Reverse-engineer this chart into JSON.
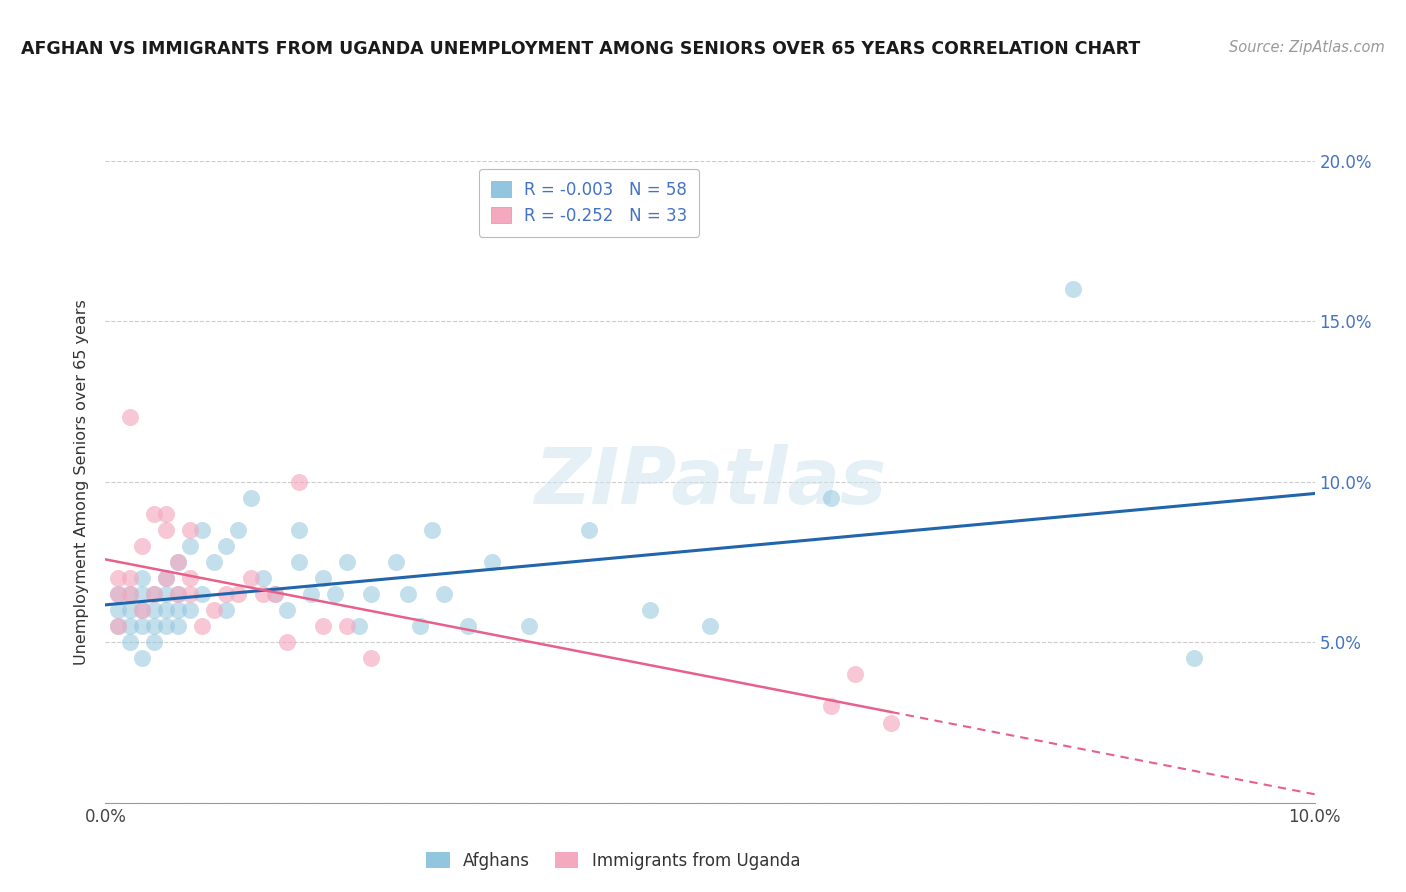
{
  "title": "AFGHAN VS IMMIGRANTS FROM UGANDA UNEMPLOYMENT AMONG SENIORS OVER 65 YEARS CORRELATION CHART",
  "source": "Source: ZipAtlas.com",
  "ylabel": "Unemployment Among Seniors over 65 years",
  "r_afghans": -0.003,
  "n_afghans": 58,
  "r_uganda": -0.252,
  "n_uganda": 33,
  "afghans_color": "#92c5de",
  "uganda_color": "#f4a9bf",
  "trend_afghans_color": "#2166ac",
  "trend_uganda_color": "#e8608a",
  "xlim": [
    0.0,
    0.1
  ],
  "ylim": [
    0.0,
    0.2
  ],
  "xticks": [
    0.0,
    0.02,
    0.04,
    0.06,
    0.08,
    0.1
  ],
  "xtick_labels": [
    "0.0%",
    "",
    "",
    "",
    "",
    "10.0%"
  ],
  "ytick_vals": [
    0.0,
    0.05,
    0.1,
    0.15,
    0.2
  ],
  "ytick_labels_right": [
    "",
    "5.0%",
    "10.0%",
    "15.0%",
    "20.0%"
  ],
  "afghans_x": [
    0.001,
    0.001,
    0.001,
    0.002,
    0.002,
    0.002,
    0.002,
    0.003,
    0.003,
    0.003,
    0.003,
    0.003,
    0.004,
    0.004,
    0.004,
    0.004,
    0.005,
    0.005,
    0.005,
    0.005,
    0.006,
    0.006,
    0.006,
    0.006,
    0.007,
    0.007,
    0.008,
    0.008,
    0.009,
    0.01,
    0.01,
    0.011,
    0.012,
    0.013,
    0.014,
    0.015,
    0.016,
    0.016,
    0.017,
    0.018,
    0.019,
    0.02,
    0.021,
    0.022,
    0.024,
    0.025,
    0.026,
    0.027,
    0.028,
    0.03,
    0.032,
    0.035,
    0.04,
    0.045,
    0.05,
    0.06,
    0.08,
    0.09
  ],
  "afghans_y": [
    0.055,
    0.06,
    0.065,
    0.05,
    0.055,
    0.06,
    0.065,
    0.045,
    0.055,
    0.06,
    0.065,
    0.07,
    0.05,
    0.055,
    0.06,
    0.065,
    0.055,
    0.06,
    0.065,
    0.07,
    0.055,
    0.06,
    0.065,
    0.075,
    0.06,
    0.08,
    0.065,
    0.085,
    0.075,
    0.06,
    0.08,
    0.085,
    0.095,
    0.07,
    0.065,
    0.06,
    0.085,
    0.075,
    0.065,
    0.07,
    0.065,
    0.075,
    0.055,
    0.065,
    0.075,
    0.065,
    0.055,
    0.085,
    0.065,
    0.055,
    0.075,
    0.055,
    0.085,
    0.06,
    0.055,
    0.095,
    0.16,
    0.045
  ],
  "uganda_x": [
    0.001,
    0.001,
    0.001,
    0.002,
    0.002,
    0.002,
    0.003,
    0.003,
    0.004,
    0.004,
    0.005,
    0.005,
    0.005,
    0.006,
    0.006,
    0.007,
    0.007,
    0.007,
    0.008,
    0.009,
    0.01,
    0.011,
    0.012,
    0.013,
    0.014,
    0.015,
    0.016,
    0.018,
    0.02,
    0.022,
    0.06,
    0.062,
    0.065
  ],
  "uganda_y": [
    0.055,
    0.065,
    0.07,
    0.065,
    0.07,
    0.12,
    0.06,
    0.08,
    0.065,
    0.09,
    0.07,
    0.085,
    0.09,
    0.065,
    0.075,
    0.065,
    0.07,
    0.085,
    0.055,
    0.06,
    0.065,
    0.065,
    0.07,
    0.065,
    0.065,
    0.05,
    0.1,
    0.055,
    0.055,
    0.045,
    0.03,
    0.04,
    0.025
  ],
  "trend_uganda_solid_end": 0.065,
  "trend_uganda_dashed_end": 0.1
}
